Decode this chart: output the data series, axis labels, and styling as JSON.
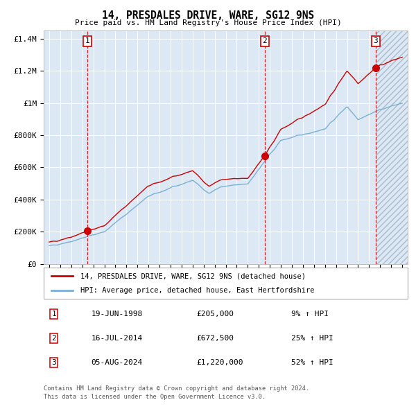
{
  "title": "14, PRESDALES DRIVE, WARE, SG12 9NS",
  "subtitle": "Price paid vs. HM Land Registry's House Price Index (HPI)",
  "legend_line1": "14, PRESDALES DRIVE, WARE, SG12 9NS (detached house)",
  "legend_line2": "HPI: Average price, detached house, East Hertfordshire",
  "table_rows": [
    {
      "num": 1,
      "date": "19-JUN-1998",
      "price": "£205,000",
      "change": "9% ↑ HPI"
    },
    {
      "num": 2,
      "date": "16-JUL-2014",
      "price": "£672,500",
      "change": "25% ↑ HPI"
    },
    {
      "num": 3,
      "date": "05-AUG-2024",
      "price": "£1,220,000",
      "change": "52% ↑ HPI"
    }
  ],
  "footnote1": "Contains HM Land Registry data © Crown copyright and database right 2024.",
  "footnote2": "This data is licensed under the Open Government Licence v3.0.",
  "sale_dates_decimal": [
    1998.47,
    2014.54,
    2024.6
  ],
  "sale_prices": [
    205000,
    672500,
    1220000
  ],
  "red_line_color": "#cc0000",
  "blue_line_color": "#7ab0d4",
  "background_color": "#dce9f5",
  "grid_color": "#ffffff",
  "dashed_line_color": "#cc0000",
  "ylim": [
    0,
    1450000
  ],
  "xlim_start": 1994.5,
  "xlim_end": 2027.5,
  "yticks": [
    0,
    200000,
    400000,
    600000,
    800000,
    1000000,
    1200000,
    1400000
  ],
  "ytick_labels": [
    "£0",
    "£200K",
    "£400K",
    "£600K",
    "£800K",
    "£1M",
    "£1.2M",
    "£1.4M"
  ],
  "xticks": [
    1995,
    1996,
    1997,
    1998,
    1999,
    2000,
    2001,
    2002,
    2003,
    2004,
    2005,
    2006,
    2007,
    2008,
    2009,
    2010,
    2011,
    2012,
    2013,
    2014,
    2015,
    2016,
    2017,
    2018,
    2019,
    2020,
    2021,
    2022,
    2023,
    2024,
    2025,
    2026,
    2027
  ]
}
